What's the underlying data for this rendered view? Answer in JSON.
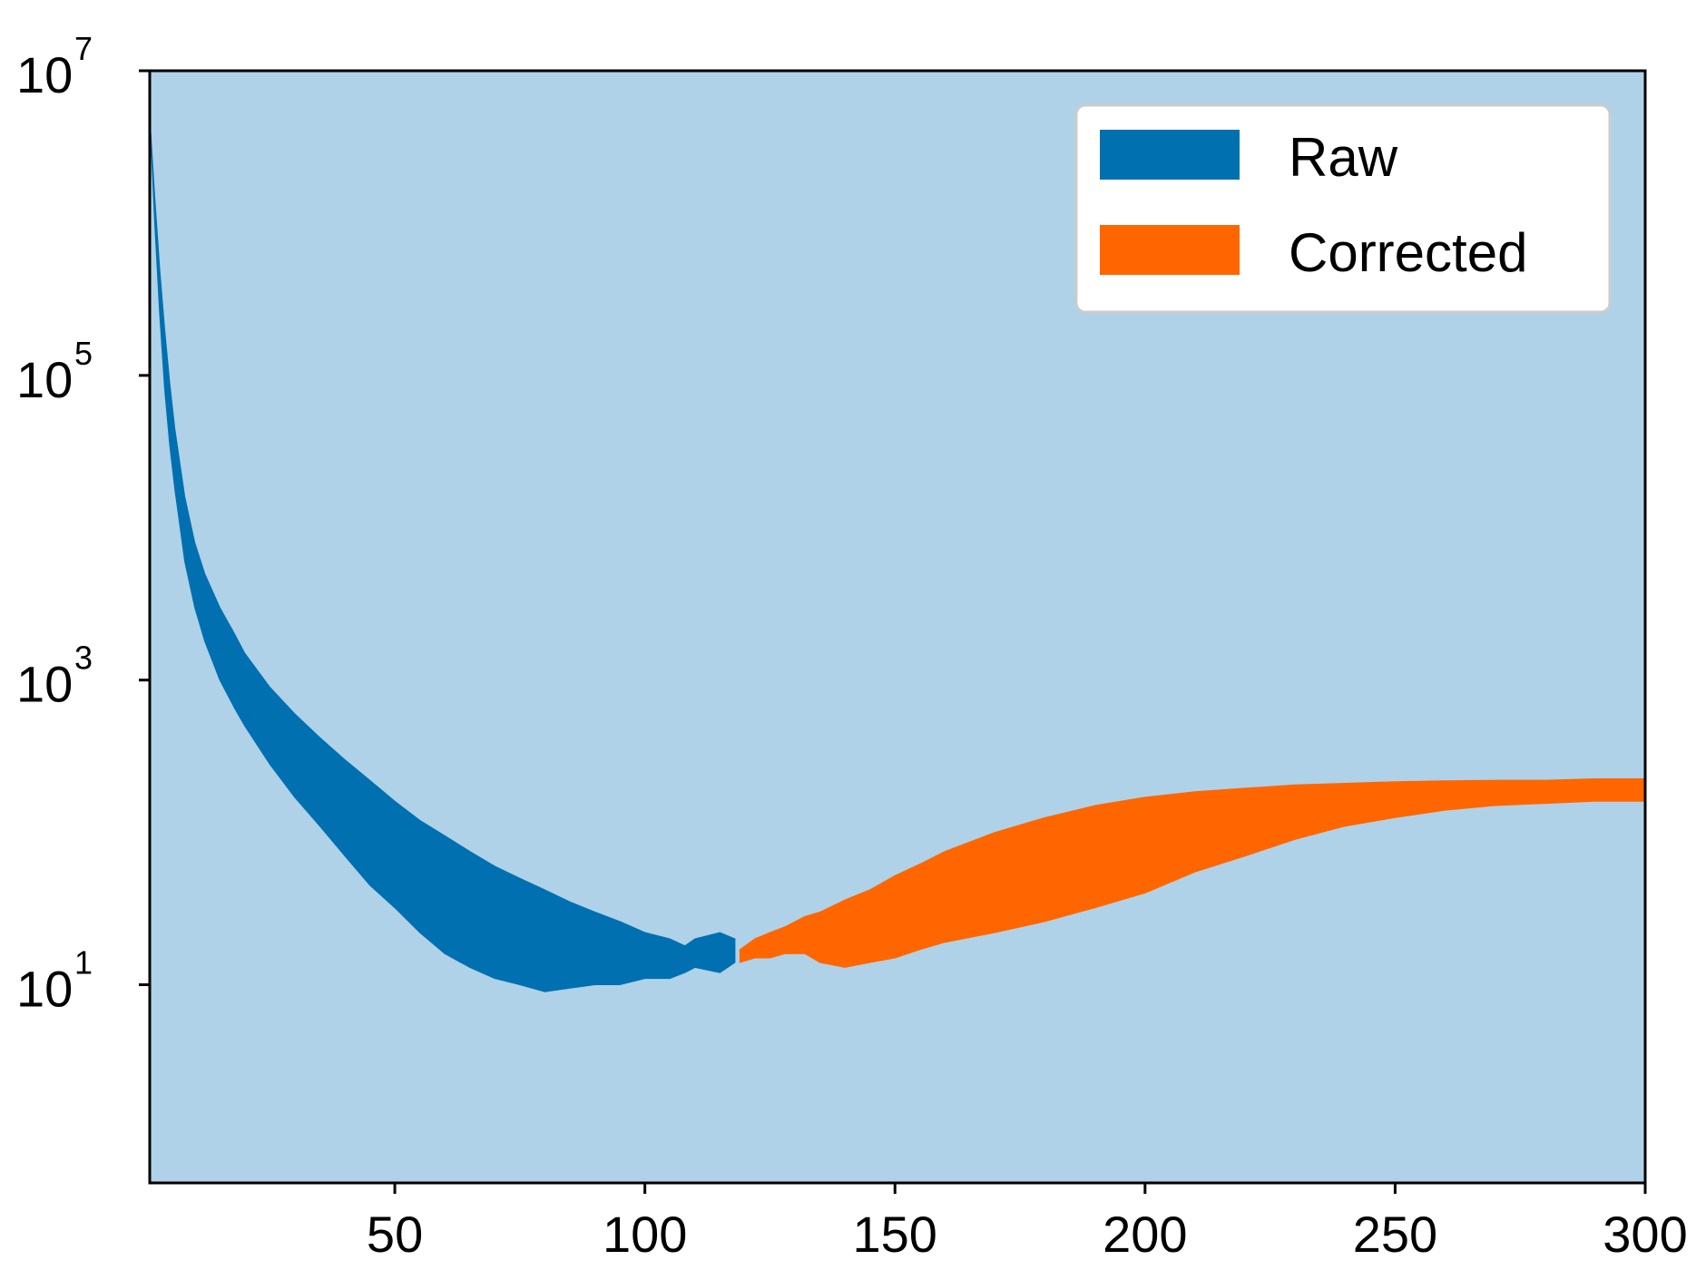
{
  "chart_data": {
    "type": "area",
    "title": "",
    "xlabel": "",
    "ylabel": "",
    "xscale": "linear",
    "yscale": "log",
    "xlim": [
      1,
      300
    ],
    "ylim": [
      0.5,
      10000000
    ],
    "grid": false,
    "legend_position": "top-right",
    "xticks": [
      {
        "value": 50,
        "label": "50"
      },
      {
        "value": 100,
        "label": "100"
      },
      {
        "value": 150,
        "label": "150"
      },
      {
        "value": 200,
        "label": "200"
      },
      {
        "value": 250,
        "label": "250"
      },
      {
        "value": 300,
        "label": "300"
      }
    ],
    "yticks": [
      {
        "value": 10,
        "base": "10",
        "exp": "1"
      },
      {
        "value": 1000,
        "base": "10",
        "exp": "3"
      },
      {
        "value": 100000,
        "base": "10",
        "exp": "5"
      },
      {
        "value": 10000000,
        "base": "10",
        "exp": "7"
      }
    ],
    "background_fill_color": "#afd2e8",
    "series": [
      {
        "name": "Raw",
        "color": "#0170b0",
        "x": [
          1,
          2,
          3,
          4,
          5,
          6,
          8,
          10,
          12,
          15,
          18,
          20,
          25,
          30,
          35,
          40,
          45,
          50,
          55,
          60,
          65,
          70,
          75,
          80,
          85,
          90,
          95,
          100,
          105,
          108,
          110,
          115,
          118
        ],
        "upper": [
          5000000,
          1500000,
          500000,
          200000,
          90000,
          45000,
          16000,
          8000,
          5000,
          3000,
          2000,
          1500,
          900,
          600,
          420,
          300,
          220,
          160,
          120,
          95,
          75,
          60,
          50,
          42,
          35,
          30,
          26,
          22,
          20,
          18,
          20,
          22,
          20
        ],
        "lower": [
          5000000,
          1000000,
          250000,
          80000,
          35000,
          18000,
          6000,
          3000,
          1800,
          1000,
          650,
          500,
          280,
          170,
          110,
          70,
          45,
          32,
          22,
          16,
          13,
          11,
          10,
          9,
          9.5,
          10,
          10,
          11,
          11,
          12,
          13,
          12,
          14
        ]
      },
      {
        "name": "Corrected",
        "color": "#ff6600",
        "x": [
          119,
          122,
          125,
          128,
          132,
          135,
          140,
          145,
          150,
          155,
          160,
          170,
          180,
          190,
          200,
          210,
          220,
          230,
          240,
          250,
          260,
          270,
          280,
          290,
          300
        ],
        "upper": [
          17,
          20,
          22,
          24,
          28,
          30,
          36,
          42,
          52,
          62,
          75,
          100,
          125,
          150,
          170,
          185,
          195,
          205,
          210,
          215,
          218,
          220,
          220,
          225,
          225
        ],
        "lower": [
          14,
          15,
          15,
          16,
          16,
          14,
          13,
          14,
          15,
          17,
          19,
          22,
          26,
          32,
          40,
          55,
          70,
          90,
          110,
          125,
          140,
          150,
          155,
          160,
          160
        ]
      }
    ]
  }
}
